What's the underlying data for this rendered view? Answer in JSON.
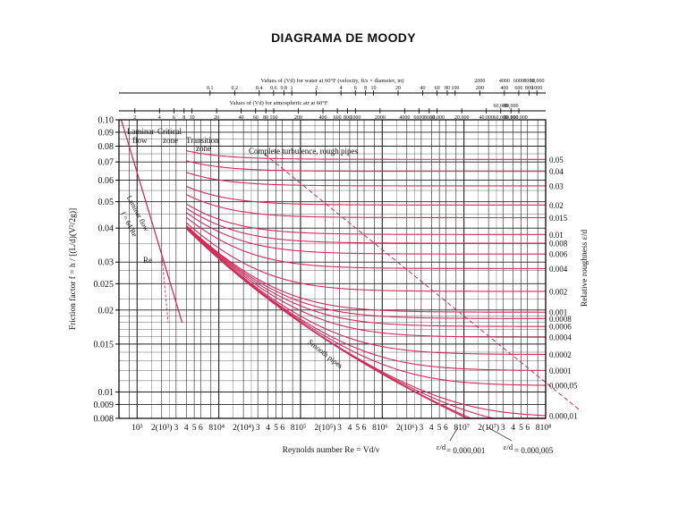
{
  "page_title": "DIAGRAMA DE MOODY",
  "chart_data": {
    "type": "line",
    "x_scale": "log",
    "y_scale": "log",
    "xlim": [
      600,
      100000000
    ],
    "ylim": [
      0.008,
      0.1
    ],
    "grid": true,
    "xlabel": "Reynolds number Re = Vd/ν",
    "ylabel": "Friction factor f = h / [(L/d)(V²/2g)]",
    "y2label": "Relative roughness ε/d",
    "colors": {
      "curves": "#d42a5a",
      "grid": "#222222"
    },
    "x_tick_labels": [
      {
        "v": 1000,
        "t": "10³"
      },
      {
        "v": 2000,
        "t": "2(10³)"
      },
      {
        "v": 3000,
        "t": "3"
      },
      {
        "v": 4000,
        "t": "4"
      },
      {
        "v": 5000,
        "t": "5"
      },
      {
        "v": 6000,
        "t": "6"
      },
      {
        "v": 8000,
        "t": "8"
      },
      {
        "v": 10000,
        "t": "10⁴"
      },
      {
        "v": 20000,
        "t": "2(10⁴)"
      },
      {
        "v": 30000,
        "t": "3"
      },
      {
        "v": 40000,
        "t": "4"
      },
      {
        "v": 50000,
        "t": "5"
      },
      {
        "v": 60000,
        "t": "6"
      },
      {
        "v": 80000,
        "t": "8"
      },
      {
        "v": 100000,
        "t": "10⁵"
      },
      {
        "v": 200000,
        "t": "2(10⁵)"
      },
      {
        "v": 300000,
        "t": "3"
      },
      {
        "v": 400000,
        "t": "4"
      },
      {
        "v": 500000,
        "t": "5"
      },
      {
        "v": 600000,
        "t": "6"
      },
      {
        "v": 800000,
        "t": "8"
      },
      {
        "v": 1000000,
        "t": "10⁶"
      },
      {
        "v": 2000000,
        "t": "2(10⁶)"
      },
      {
        "v": 3000000,
        "t": "3"
      },
      {
        "v": 4000000,
        "t": "4"
      },
      {
        "v": 5000000,
        "t": "5"
      },
      {
        "v": 6000000,
        "t": "6"
      },
      {
        "v": 8000000,
        "t": "8"
      },
      {
        "v": 10000000,
        "t": "10⁷"
      },
      {
        "v": 20000000,
        "t": "2(10⁷)"
      },
      {
        "v": 30000000,
        "t": "3"
      },
      {
        "v": 40000000,
        "t": "4"
      },
      {
        "v": 50000000,
        "t": "5"
      },
      {
        "v": 60000000,
        "t": "6"
      },
      {
        "v": 80000000,
        "t": "8"
      },
      {
        "v": 100000000,
        "t": "10⁸"
      }
    ],
    "y_tick_labels": [
      {
        "v": 0.1,
        "t": "0.10"
      },
      {
        "v": 0.09,
        "t": "0.09"
      },
      {
        "v": 0.08,
        "t": "0.08"
      },
      {
        "v": 0.07,
        "t": "0.07"
      },
      {
        "v": 0.06,
        "t": "0.06"
      },
      {
        "v": 0.05,
        "t": "0.05"
      },
      {
        "v": 0.04,
        "t": "0.04"
      },
      {
        "v": 0.03,
        "t": "0.03"
      },
      {
        "v": 0.025,
        "t": "0.025"
      },
      {
        "v": 0.02,
        "t": "0.02"
      },
      {
        "v": 0.015,
        "t": "0.015"
      },
      {
        "v": 0.01,
        "t": "0.01"
      },
      {
        "v": 0.009,
        "t": "0.009"
      },
      {
        "v": 0.008,
        "t": "0.008"
      }
    ],
    "top_axis_water": {
      "label": "Values of (Vd) for water at 60°F (velocity, ft/s × diameter, in)",
      "ticks": [
        {
          "re": 7810,
          "t": "0.1"
        },
        {
          "re": 15620,
          "t": "0.2"
        },
        {
          "re": 31240,
          "t": "0.4"
        },
        {
          "re": 46860,
          "t": "0.6"
        },
        {
          "re": 62480,
          "t": "0.8"
        },
        {
          "re": 78100,
          "t": "1"
        },
        {
          "re": 156200,
          "t": "2"
        },
        {
          "re": 312400,
          "t": "4"
        },
        {
          "re": 468600,
          "t": "6"
        },
        {
          "re": 624800,
          "t": "8"
        },
        {
          "re": 781000,
          "t": "10"
        },
        {
          "re": 1562000,
          "t": "20"
        },
        {
          "re": 3124000,
          "t": "40"
        },
        {
          "re": 4686000,
          "t": "60"
        },
        {
          "re": 6248000,
          "t": "80"
        },
        {
          "re": 7810000,
          "t": "100"
        },
        {
          "re": 15620000,
          "t": "200"
        },
        {
          "re": 31240000,
          "t": "400"
        },
        {
          "re": 46860000,
          "t": "600"
        },
        {
          "re": 62480000,
          "t": "800"
        },
        {
          "re": 78100000,
          "t": "1000"
        }
      ],
      "ticks2": [
        {
          "re": 15620000,
          "t": "2000"
        },
        {
          "re": 31240000,
          "t": "4000"
        },
        {
          "re": 46860000,
          "t": "6000"
        },
        {
          "re": 62480000,
          "t": "8000"
        },
        {
          "re": 78100000,
          "t": "10,000"
        }
      ]
    },
    "top_axis_air": {
      "label": "Values of (Vd) for atmospheric air at 60°F",
      "ticks": [
        {
          "re": 940,
          "t": "2"
        },
        {
          "re": 1880,
          "t": "4"
        },
        {
          "re": 2820,
          "t": "6"
        },
        {
          "re": 3760,
          "t": "8"
        },
        {
          "re": 4700,
          "t": "10"
        },
        {
          "re": 9400,
          "t": "20"
        },
        {
          "re": 18800,
          "t": "40"
        },
        {
          "re": 28200,
          "t": "60"
        },
        {
          "re": 37600,
          "t": "80"
        },
        {
          "re": 47000,
          "t": "100"
        },
        {
          "re": 94000,
          "t": "200"
        },
        {
          "re": 188000,
          "t": "400"
        },
        {
          "re": 282000,
          "t": "600"
        },
        {
          "re": 376000,
          "t": "800"
        },
        {
          "re": 470000,
          "t": "1000"
        },
        {
          "re": 940000,
          "t": "2000"
        },
        {
          "re": 1880000,
          "t": "4000"
        },
        {
          "re": 2820000,
          "t": "6000"
        },
        {
          "re": 3760000,
          "t": "8000"
        },
        {
          "re": 4700000,
          "t": "10,000"
        },
        {
          "re": 9400000,
          "t": "20,000"
        },
        {
          "re": 18800000,
          "t": "40,000"
        },
        {
          "re": 28200000,
          "t": "60,000"
        },
        {
          "re": 37600000,
          "t": "80,000"
        },
        {
          "re": 47000000,
          "t": "100,000"
        }
      ],
      "ticks2": [
        {
          "re": 28200000,
          "t": "60,000"
        },
        {
          "re": 37600000,
          "t": "80,000"
        }
      ]
    },
    "roughness_labels": [
      {
        "v": 0.05,
        "t": "0.05"
      },
      {
        "v": 0.04,
        "t": "0.04"
      },
      {
        "v": 0.03,
        "t": "0.03"
      },
      {
        "v": 0.02,
        "t": "0.02"
      },
      {
        "v": 0.015,
        "t": "0.015"
      },
      {
        "v": 0.01,
        "t": "0.01"
      },
      {
        "v": 0.008,
        "t": "0.008"
      },
      {
        "v": 0.006,
        "t": "0.006"
      },
      {
        "v": 0.004,
        "t": "0.004"
      },
      {
        "v": 0.002,
        "t": "0.002"
      },
      {
        "v": 0.001,
        "t": "0.001"
      },
      {
        "v": 0.0008,
        "t": "0.0008"
      },
      {
        "v": 0.0006,
        "t": "0.0006"
      },
      {
        "v": 0.0004,
        "t": "0.0004"
      },
      {
        "v": 0.0002,
        "t": "0.0002"
      },
      {
        "v": 0.0001,
        "t": "0.0001"
      },
      {
        "v": 5e-05,
        "t": "0.000,05"
      },
      {
        "v": 1e-05,
        "t": "0.000,01"
      }
    ],
    "extra_roughness_curves": [
      5e-06,
      1e-06
    ],
    "region_labels": {
      "laminar": "Laminar",
      "flow": "flow",
      "critical": "Critical",
      "zone": "zone",
      "transition": "Transition",
      "transition_zone": "zone",
      "complete_turbulence": "Complete turbulence, rough pipes",
      "laminar_flow_rotated": "Laminar flow",
      "laminar_formula": "f = 64/Re",
      "re_critical": "Re",
      "smooth_pipes": "Smooth pipes"
    },
    "bottom_annotations": {
      "eps_d": "ε/d",
      "eq_1": "= 0.000,001",
      "eq_2": "= 0.000,005"
    }
  }
}
